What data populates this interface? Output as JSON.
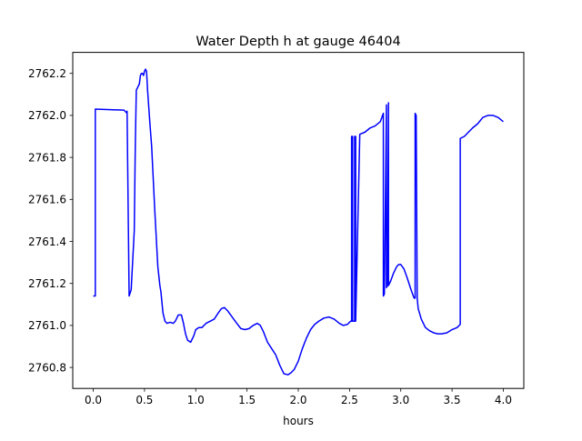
{
  "chart_data": {
    "type": "line",
    "title": "Water Depth h at gauge 46404",
    "xlabel": "hours",
    "ylabel": "",
    "xlim": [
      -0.2,
      4.2
    ],
    "ylim": [
      2760.7,
      2762.3
    ],
    "xticks": [
      0.0,
      0.5,
      1.0,
      1.5,
      2.0,
      2.5,
      3.0,
      3.5,
      4.0
    ],
    "xtick_labels": [
      "0.0",
      "0.5",
      "1.0",
      "1.5",
      "2.0",
      "2.5",
      "3.0",
      "3.5",
      "4.0"
    ],
    "yticks": [
      2760.8,
      2761.0,
      2761.2,
      2761.4,
      2761.6,
      2761.8,
      2762.0,
      2762.2
    ],
    "ytick_labels": [
      "2760.8",
      "2761.0",
      "2761.2",
      "2761.4",
      "2761.6",
      "2761.8",
      "2762.0",
      "2762.2"
    ],
    "grid": false,
    "legend": "none",
    "colors": {
      "line": "#0000ff",
      "axes": "#000000",
      "background": "#ffffff"
    },
    "series": [
      {
        "x": [
          0.0,
          0.02,
          0.02,
          0.3,
          0.33,
          0.33,
          0.35,
          0.37,
          0.4,
          0.41,
          0.42,
          0.44,
          0.45,
          0.46,
          0.47,
          0.48,
          0.49,
          0.5,
          0.51,
          0.52,
          0.53,
          0.55,
          0.57,
          0.6,
          0.63,
          0.65,
          0.66,
          0.67,
          0.68,
          0.7,
          0.72,
          0.75,
          0.78,
          0.8,
          0.83,
          0.86,
          0.88,
          0.9,
          0.92,
          0.95,
          0.98,
          1.0,
          1.03,
          1.06,
          1.1,
          1.14,
          1.18,
          1.22,
          1.25,
          1.28,
          1.31,
          1.34,
          1.37,
          1.4,
          1.44,
          1.48,
          1.52,
          1.56,
          1.6,
          1.63,
          1.66,
          1.7,
          1.74,
          1.78,
          1.82,
          1.86,
          1.9,
          1.93,
          1.96,
          2.0,
          2.04,
          2.08,
          2.12,
          2.16,
          2.2,
          2.25,
          2.3,
          2.35,
          2.4,
          2.44,
          2.48,
          2.51,
          2.52,
          2.52,
          2.53,
          2.53,
          2.55,
          2.55,
          2.56,
          2.56,
          2.6,
          2.65,
          2.7,
          2.75,
          2.8,
          2.83,
          2.83,
          2.84,
          2.86,
          2.86,
          2.87,
          2.88,
          2.88,
          2.9,
          2.93,
          2.96,
          2.98,
          3.0,
          3.03,
          3.06,
          3.1,
          3.13,
          3.14,
          3.14,
          3.15,
          3.16,
          3.17,
          3.2,
          3.24,
          3.28,
          3.32,
          3.36,
          3.4,
          3.45,
          3.5,
          3.55,
          3.58,
          3.58,
          3.62,
          3.66,
          3.7,
          3.75,
          3.8,
          3.85,
          3.9,
          3.95,
          4.0
        ],
        "y": [
          2761.14,
          2761.14,
          2762.03,
          2762.025,
          2762.01,
          2762.02,
          2761.14,
          2761.17,
          2761.45,
          2761.85,
          2762.12,
          2762.14,
          2762.15,
          2762.19,
          2762.2,
          2762.2,
          2762.19,
          2762.21,
          2762.22,
          2762.21,
          2762.12,
          2761.98,
          2761.85,
          2761.55,
          2761.28,
          2761.19,
          2761.16,
          2761.11,
          2761.06,
          2761.02,
          2761.01,
          2761.015,
          2761.01,
          2761.02,
          2761.05,
          2761.05,
          2761.01,
          2760.96,
          2760.93,
          2760.92,
          2760.95,
          2760.98,
          2760.99,
          2760.99,
          2761.01,
          2761.02,
          2761.03,
          2761.06,
          2761.08,
          2761.085,
          2761.07,
          2761.05,
          2761.03,
          2761.01,
          2760.985,
          2760.98,
          2760.985,
          2761.0,
          2761.01,
          2761.0,
          2760.97,
          2760.92,
          2760.89,
          2760.86,
          2760.81,
          2760.77,
          2760.765,
          2760.775,
          2760.79,
          2760.83,
          2760.89,
          2760.94,
          2760.98,
          2761.005,
          2761.02,
          2761.035,
          2761.04,
          2761.03,
          2761.01,
          2761.0,
          2761.005,
          2761.02,
          2761.02,
          2761.9,
          2761.9,
          2761.02,
          2761.02,
          2761.9,
          2761.9,
          2761.02,
          2761.91,
          2761.92,
          2761.94,
          2761.95,
          2761.97,
          2762.01,
          2761.14,
          2761.15,
          2762.05,
          2761.18,
          2761.19,
          2762.06,
          2761.19,
          2761.21,
          2761.25,
          2761.28,
          2761.29,
          2761.29,
          2761.27,
          2761.23,
          2761.17,
          2761.13,
          2761.13,
          2762.01,
          2762.0,
          2761.13,
          2761.08,
          2761.03,
          2760.99,
          2760.975,
          2760.965,
          2760.96,
          2760.96,
          2760.965,
          2760.98,
          2760.99,
          2761.005,
          2761.89,
          2761.9,
          2761.92,
          2761.94,
          2761.96,
          2761.99,
          2762.0,
          2762.0,
          2761.99,
          2761.97
        ]
      }
    ]
  }
}
